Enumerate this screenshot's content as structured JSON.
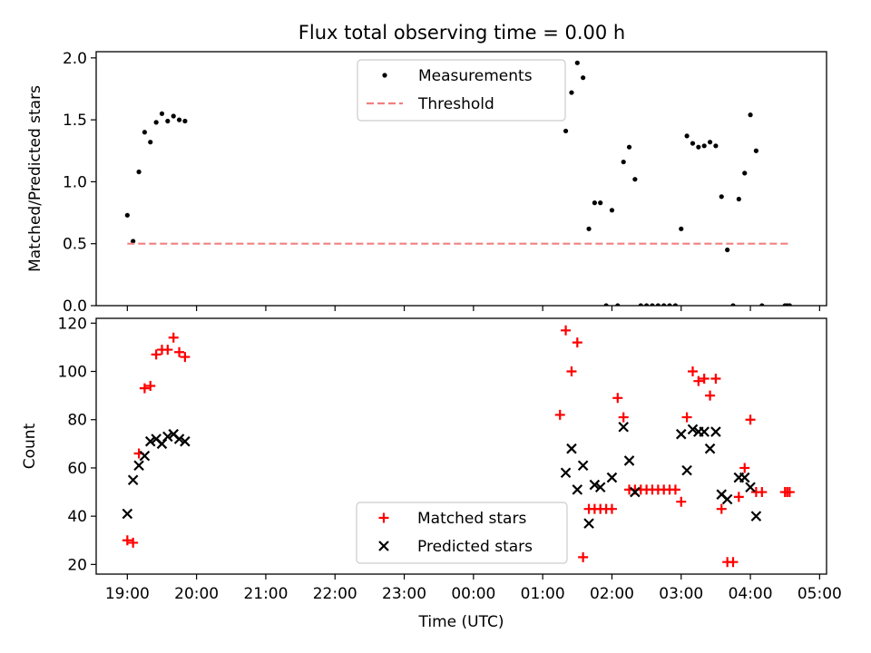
{
  "figure": {
    "title": "Flux total observing time = 0.00 h"
  },
  "chart_data": [
    {
      "type": "scatter",
      "panel": "top",
      "ylabel": "Matched/Predicted stars",
      "ylim": [
        0,
        2.05
      ],
      "yticks": [
        0.0,
        0.5,
        1.0,
        1.5,
        2.0
      ],
      "ytick_labels": [
        "0.0",
        "0.5",
        "1.0",
        "1.5",
        "2.0"
      ],
      "legend_position": "upper center",
      "series": [
        {
          "name": "Measurements",
          "marker": "dot",
          "color": "#000000",
          "x": [
            0.0,
            0.083,
            0.167,
            0.25,
            0.333,
            0.417,
            0.5,
            0.583,
            0.667,
            0.75,
            0.833,
            6.333,
            6.417,
            6.5,
            6.583,
            6.667,
            6.75,
            6.833,
            6.917,
            7.0,
            7.083,
            7.167,
            7.25,
            7.333,
            7.417,
            7.5,
            7.583,
            7.667,
            7.75,
            7.833,
            7.917,
            8.0,
            8.083,
            8.167,
            8.25,
            8.333,
            8.417,
            8.5,
            8.583,
            8.667,
            8.75,
            8.833,
            8.917,
            9.0,
            9.083,
            9.167,
            9.5,
            9.533,
            9.567
          ],
          "y": [
            0.73,
            0.52,
            1.08,
            1.4,
            1.32,
            1.48,
            1.55,
            1.49,
            1.53,
            1.5,
            1.49,
            1.41,
            1.72,
            1.96,
            1.84,
            0.62,
            0.83,
            0.83,
            0.0,
            0.77,
            0.0,
            1.16,
            1.28,
            1.02,
            0.0,
            0.0,
            0.0,
            0.0,
            0.0,
            0.0,
            0.0,
            0.62,
            1.37,
            1.31,
            1.28,
            1.29,
            1.32,
            1.29,
            0.88,
            0.45,
            0.0,
            0.86,
            1.07,
            1.54,
            1.25,
            0.0,
            0.0,
            0.0,
            0.0
          ]
        },
        {
          "name": "Threshold",
          "line": "dashed",
          "color": "#f08080",
          "x": [
            0.0,
            9.567
          ],
          "y": [
            0.5,
            0.5
          ]
        }
      ]
    },
    {
      "type": "scatter",
      "panel": "bottom",
      "xlabel": "Time (UTC)",
      "ylabel": "Count",
      "xlim": [
        -0.45,
        10.1
      ],
      "ylim": [
        16,
        122
      ],
      "xticks": [
        0,
        1,
        2,
        3,
        4,
        5,
        6,
        7,
        8,
        9,
        10
      ],
      "xtick_labels": [
        "19:00",
        "20:00",
        "21:00",
        "22:00",
        "23:00",
        "00:00",
        "01:00",
        "02:00",
        "03:00",
        "04:00",
        "05:00"
      ],
      "yticks": [
        20,
        40,
        60,
        80,
        100,
        120
      ],
      "ytick_labels": [
        "20",
        "40",
        "60",
        "80",
        "100",
        "120"
      ],
      "legend_position": "lower center",
      "series": [
        {
          "name": "Matched stars",
          "marker": "plus",
          "color": "#ff0000",
          "x": [
            0.0,
            0.083,
            0.167,
            0.25,
            0.333,
            0.417,
            0.5,
            0.583,
            0.667,
            0.75,
            0.833,
            6.25,
            6.333,
            6.417,
            6.5,
            6.583,
            6.667,
            6.75,
            6.833,
            6.917,
            7.0,
            7.083,
            7.167,
            7.25,
            7.333,
            7.417,
            7.5,
            7.583,
            7.667,
            7.75,
            7.833,
            7.917,
            8.0,
            8.083,
            8.167,
            8.25,
            8.333,
            8.417,
            8.5,
            8.583,
            8.667,
            8.75,
            8.833,
            8.917,
            9.0,
            9.083,
            9.167,
            9.5,
            9.533,
            9.567
          ],
          "y": [
            30,
            29,
            66,
            93,
            94,
            107,
            109,
            109,
            114,
            108,
            106,
            82,
            117,
            100,
            112,
            23,
            43,
            43,
            43,
            43,
            43,
            89,
            81,
            51,
            51,
            51,
            51,
            51,
            51,
            51,
            51,
            51,
            46,
            81,
            100,
            96,
            97,
            90,
            97,
            43,
            21,
            21,
            48,
            60,
            80,
            50,
            50,
            50,
            50,
            50
          ]
        },
        {
          "name": "Predicted stars",
          "marker": "x",
          "color": "#000000",
          "x": [
            0.0,
            0.083,
            0.167,
            0.25,
            0.333,
            0.417,
            0.5,
            0.583,
            0.667,
            0.75,
            0.833,
            6.333,
            6.417,
            6.5,
            6.583,
            6.667,
            6.75,
            6.833,
            7.0,
            7.167,
            7.25,
            7.333,
            8.0,
            8.083,
            8.167,
            8.25,
            8.333,
            8.417,
            8.5,
            8.583,
            8.667,
            8.833,
            8.917,
            9.0,
            9.083
          ],
          "y": [
            41,
            55,
            61,
            65,
            71,
            72,
            70,
            73,
            74,
            72,
            71,
            58,
            68,
            51,
            61,
            37,
            53,
            52,
            56,
            77,
            63,
            50,
            74,
            59,
            76,
            75,
            75,
            68,
            75,
            49,
            47,
            56,
            56,
            52,
            40
          ]
        }
      ]
    }
  ]
}
